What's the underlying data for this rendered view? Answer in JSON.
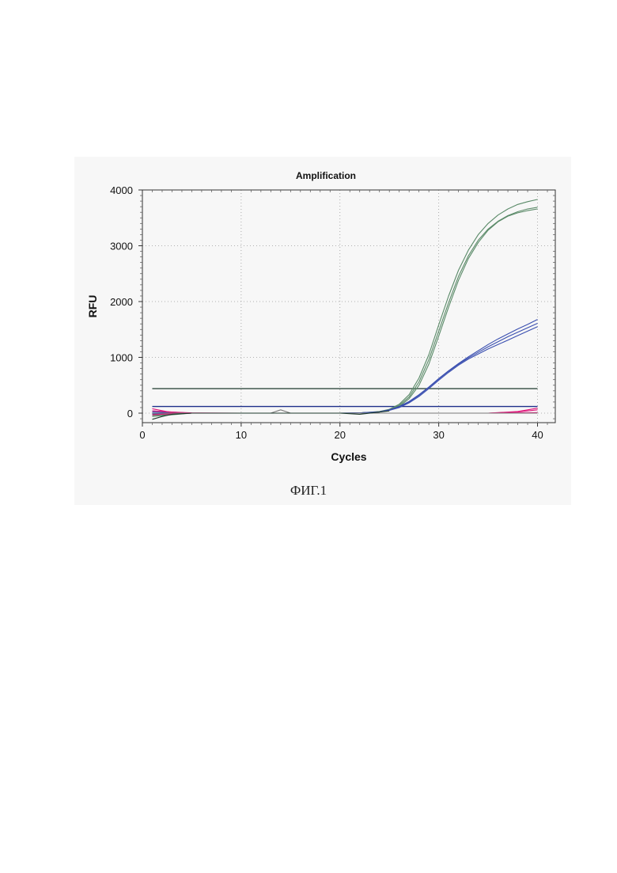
{
  "caption": "ФИГ.1",
  "chart_data": {
    "type": "line",
    "title": "Amplification",
    "xlabel": "Cycles",
    "ylabel": "RFU",
    "xlim": [
      0,
      41.8
    ],
    "ylim": [
      -170,
      4000
    ],
    "xticks": [
      0,
      10,
      20,
      30,
      40
    ],
    "yticks": [
      0,
      1000,
      2000,
      3000,
      4000
    ],
    "grid": "dotted",
    "colors": {
      "green": "#5a8a68",
      "blue": "#3a4fb0",
      "pink": "#e0157a",
      "threshold_dark": "#1d3a2c",
      "threshold_blue": "#1d2f8a",
      "gray": "#7a7a7a"
    },
    "thresholds": [
      {
        "y": 440,
        "color": "threshold_dark"
      },
      {
        "y": 120,
        "color": "threshold_blue"
      }
    ],
    "series": [
      {
        "color": "green",
        "x": [
          1,
          5,
          10,
          15,
          20,
          22,
          24,
          25,
          26,
          27,
          28,
          29,
          30,
          31,
          32,
          33,
          34,
          35,
          36,
          37,
          38,
          39,
          40
        ],
        "y": [
          -40,
          0,
          0,
          0,
          0,
          5,
          30,
          70,
          160,
          330,
          630,
          1050,
          1580,
          2100,
          2560,
          2920,
          3200,
          3400,
          3550,
          3660,
          3740,
          3790,
          3830
        ]
      },
      {
        "color": "green",
        "x": [
          1,
          5,
          10,
          15,
          20,
          22,
          24,
          25,
          26,
          27,
          28,
          29,
          30,
          31,
          32,
          33,
          34,
          35,
          36,
          37,
          38,
          39,
          40
        ],
        "y": [
          -60,
          0,
          0,
          0,
          0,
          5,
          25,
          60,
          140,
          290,
          560,
          960,
          1470,
          1980,
          2450,
          2820,
          3100,
          3300,
          3440,
          3540,
          3610,
          3660,
          3690
        ]
      },
      {
        "color": "green",
        "x": [
          1,
          5,
          10,
          15,
          20,
          22,
          24,
          25,
          26,
          27,
          28,
          29,
          30,
          31,
          32,
          33,
          34,
          35,
          36,
          37,
          38,
          39,
          40
        ],
        "y": [
          -20,
          0,
          0,
          0,
          0,
          5,
          20,
          55,
          120,
          260,
          500,
          880,
          1380,
          1900,
          2380,
          2770,
          3060,
          3280,
          3430,
          3530,
          3590,
          3630,
          3660
        ]
      },
      {
        "color": "blue",
        "x": [
          1,
          5,
          10,
          15,
          20,
          22,
          24,
          25,
          26,
          27,
          28,
          29,
          30,
          31,
          32,
          33,
          34,
          35,
          36,
          37,
          38,
          39,
          40
        ],
        "y": [
          20,
          0,
          0,
          0,
          0,
          5,
          25,
          60,
          120,
          210,
          330,
          470,
          620,
          760,
          890,
          1010,
          1120,
          1230,
          1330,
          1420,
          1510,
          1590,
          1680
        ]
      },
      {
        "color": "blue",
        "x": [
          1,
          5,
          10,
          15,
          20,
          22,
          24,
          25,
          26,
          27,
          28,
          29,
          30,
          31,
          32,
          33,
          34,
          35,
          36,
          37,
          38,
          39,
          40
        ],
        "y": [
          40,
          0,
          0,
          0,
          0,
          5,
          20,
          55,
          110,
          200,
          320,
          460,
          610,
          750,
          880,
          990,
          1090,
          1190,
          1280,
          1370,
          1450,
          1530,
          1610
        ]
      },
      {
        "color": "blue",
        "x": [
          1,
          5,
          10,
          15,
          20,
          22,
          24,
          25,
          26,
          27,
          28,
          29,
          30,
          31,
          32,
          33,
          34,
          35,
          36,
          37,
          38,
          39,
          40
        ],
        "y": [
          -10,
          0,
          0,
          0,
          0,
          5,
          20,
          50,
          100,
          185,
          300,
          440,
          590,
          730,
          860,
          970,
          1060,
          1150,
          1230,
          1310,
          1390,
          1470,
          1550
        ]
      },
      {
        "color": "pink",
        "x": [
          1,
          3,
          5,
          10,
          20,
          30,
          35,
          38,
          40
        ],
        "y": [
          80,
          10,
          0,
          0,
          0,
          0,
          0,
          20,
          60
        ]
      },
      {
        "color": "pink",
        "x": [
          1,
          3,
          5,
          10,
          20,
          30,
          35,
          38,
          40
        ],
        "y": [
          -30,
          -10,
          0,
          0,
          0,
          0,
          0,
          30,
          90
        ]
      },
      {
        "color": "pink",
        "x": [
          1,
          3,
          5,
          10,
          20,
          30,
          35,
          38,
          40
        ],
        "y": [
          40,
          20,
          5,
          0,
          0,
          0,
          0,
          5,
          10
        ]
      },
      {
        "color": "gray",
        "x": [
          1,
          10,
          13,
          14,
          15,
          16,
          20,
          40
        ],
        "y": [
          0,
          0,
          0,
          60,
          0,
          0,
          0,
          0
        ]
      },
      {
        "color": "threshold_dark",
        "x": [
          1,
          2,
          3,
          5,
          8,
          20,
          22,
          25
        ],
        "y": [
          -110,
          -60,
          -20,
          0,
          0,
          0,
          -20,
          40
        ]
      }
    ]
  }
}
